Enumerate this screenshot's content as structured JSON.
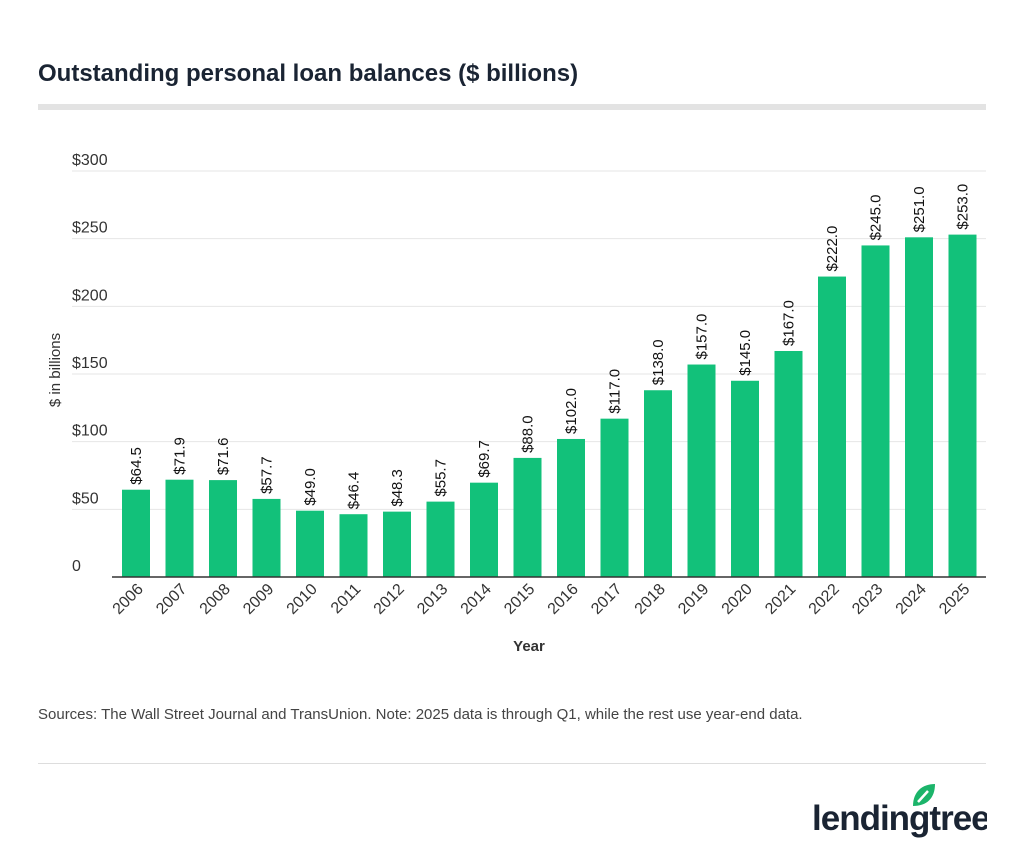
{
  "title": "Outstanding personal loan balances ($ billions)",
  "source": "Sources: The Wall Street Journal and TransUnion. Note: 2025 data is through Q1, while the rest use year-end data.",
  "logo_text": "lendingtree",
  "colors": {
    "bar": "#12c17a",
    "title": "#1a2433",
    "logo_leaf": "#1bb46a"
  },
  "chart_data": {
    "type": "bar",
    "title": "Outstanding personal loan balances ($ billions)",
    "xlabel": "Year",
    "ylabel": "$ in billions",
    "ylim": [
      0,
      300
    ],
    "yticks": [
      0,
      50,
      100,
      150,
      200,
      250,
      300
    ],
    "ytick_labels": [
      "0",
      "$50",
      "$100",
      "$150",
      "$200",
      "$250",
      "$300"
    ],
    "grid": true,
    "categories": [
      "2006",
      "2007",
      "2008",
      "2009",
      "2010",
      "2011",
      "2012",
      "2013",
      "2014",
      "2015",
      "2016",
      "2017",
      "2018",
      "2019",
      "2020",
      "2021",
      "2022",
      "2023",
      "2024",
      "2025"
    ],
    "values": [
      64.5,
      71.9,
      71.6,
      57.7,
      49.0,
      46.4,
      48.3,
      55.7,
      69.7,
      88.0,
      102.0,
      117.0,
      138.0,
      157.0,
      145.0,
      167.0,
      222.0,
      245.0,
      251.0,
      253.0
    ],
    "data_labels": [
      "$64.5",
      "$71.9",
      "$71.6",
      "$57.7",
      "$49.0",
      "$46.4",
      "$48.3",
      "$55.7",
      "$69.7",
      "$88.0",
      "$102.0",
      "$117.0",
      "$138.0",
      "$157.0",
      "$145.0",
      "$167.0",
      "$222.0",
      "$245.0",
      "$251.0",
      "$253.0"
    ]
  }
}
